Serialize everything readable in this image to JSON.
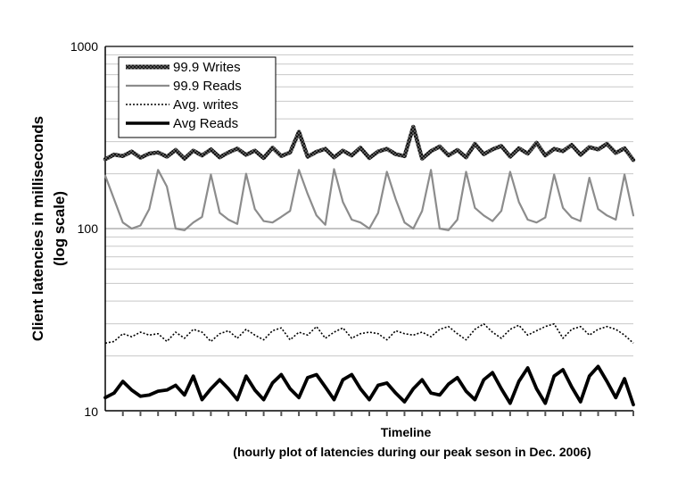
{
  "chart_data": {
    "type": "line",
    "title": "",
    "ylabel_line1": "Client latencies in milliseconds",
    "ylabel_line2": "(log scale)",
    "xlabel_line1": "Timeline",
    "xlabel_line2": "(hourly plot of latencies during our peak seson in Dec. 2006)",
    "y_scale": "log",
    "ylim": [
      10,
      1000
    ],
    "y_tick_labels": [
      "10",
      "100",
      "1000"
    ],
    "grid": "horizontal",
    "legend_position": "top-left",
    "x_tick_count": 30,
    "series": [
      {
        "name": "99.9 Writes",
        "style": "textured",
        "color": "#3a3a3a",
        "values": [
          240,
          255,
          250,
          265,
          245,
          258,
          262,
          248,
          270,
          242,
          268,
          252,
          272,
          246,
          262,
          275,
          254,
          268,
          244,
          278,
          250,
          262,
          340,
          248,
          264,
          274,
          246,
          268,
          252,
          278,
          244,
          265,
          274,
          256,
          250,
          362,
          242,
          266,
          282,
          252,
          270,
          246,
          292,
          256,
          272,
          284,
          248,
          276,
          258,
          296,
          252,
          274,
          266,
          288,
          254,
          280,
          272,
          292,
          260,
          276,
          238
        ]
      },
      {
        "name": "99.9 Reads",
        "style": "solid",
        "color": "#8c8c8c",
        "values": [
          195,
          145,
          108,
          100,
          104,
          128,
          210,
          170,
          100,
          98,
          108,
          116,
          198,
          122,
          112,
          106,
          200,
          128,
          110,
          108,
          116,
          125,
          210,
          155,
          118,
          105,
          212,
          140,
          112,
          108,
          100,
          122,
          205,
          145,
          108,
          100,
          125,
          210,
          100,
          98,
          112,
          205,
          130,
          118,
          110,
          125,
          205,
          140,
          112,
          108,
          115,
          198,
          130,
          115,
          110,
          190,
          128,
          118,
          112,
          198,
          118
        ]
      },
      {
        "name": "Avg. writes",
        "style": "dotted",
        "color": "#000000",
        "values": [
          23.5,
          24,
          26.5,
          25.5,
          27,
          26,
          26.5,
          24,
          27,
          25,
          28,
          27,
          24,
          26.5,
          27.5,
          25,
          28,
          26,
          24.5,
          27.5,
          28.5,
          24.5,
          27,
          26,
          29,
          25,
          27,
          28.5,
          25,
          26.5,
          27,
          26.5,
          24.5,
          27.5,
          26.5,
          26,
          27,
          25.5,
          28,
          29,
          26.5,
          24.5,
          28,
          30,
          27,
          25,
          28,
          29.5,
          26,
          27.5,
          29,
          30,
          25,
          28,
          29,
          26,
          28,
          29,
          28,
          26,
          23.5
        ]
      },
      {
        "name": "Avg Reads",
        "style": "thick",
        "color": "#000000",
        "values": [
          11.8,
          12.5,
          14.5,
          13,
          12,
          12.2,
          12.8,
          13,
          13.8,
          12.2,
          15.5,
          11.5,
          13.2,
          14.8,
          13.2,
          11.5,
          15.5,
          13,
          11.5,
          14.2,
          15.8,
          13.2,
          11.8,
          15.2,
          15.8,
          13.5,
          11.5,
          14.8,
          15.8,
          13.2,
          11.5,
          13.8,
          14.2,
          12.5,
          11.2,
          13.2,
          14.8,
          12.5,
          12.2,
          14,
          15.2,
          12.8,
          11.5,
          14.8,
          16.2,
          13.2,
          11,
          14.5,
          17.2,
          13.2,
          11,
          15.5,
          16.8,
          13.5,
          11.2,
          15.5,
          17.5,
          14.5,
          11.8,
          15,
          10.8
        ]
      }
    ]
  }
}
